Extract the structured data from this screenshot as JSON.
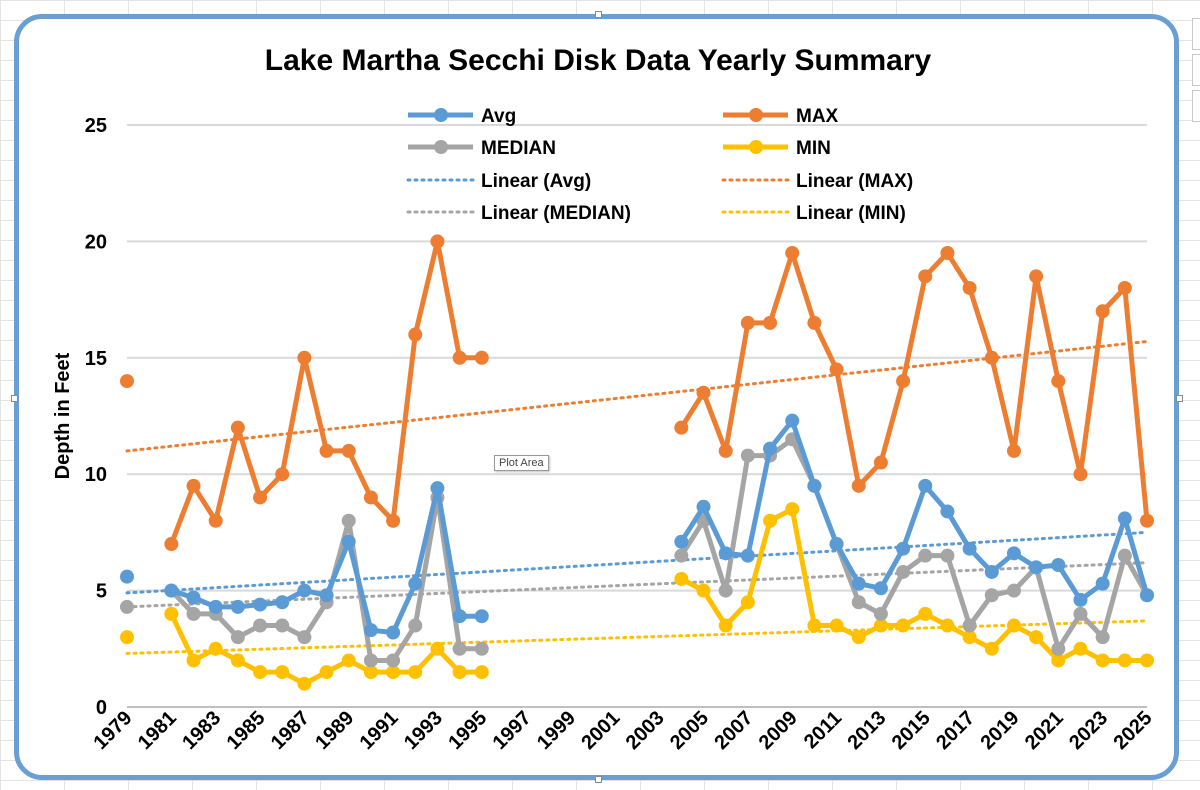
{
  "chart_data": {
    "type": "line",
    "title": "Lake Martha Secchi Disk Data Yearly Summary",
    "xlabel": "",
    "ylabel": "Depth in Feet",
    "ylim": [
      0,
      25
    ],
    "yticks": [
      0,
      5,
      10,
      15,
      20,
      25
    ],
    "x": [
      1979,
      1980,
      1981,
      1982,
      1983,
      1984,
      1985,
      1986,
      1987,
      1988,
      1989,
      1990,
      1991,
      1992,
      1993,
      1994,
      1995,
      1996,
      1997,
      1998,
      1999,
      2000,
      2001,
      2002,
      2003,
      2004,
      2005,
      2006,
      2007,
      2008,
      2009,
      2010,
      2011,
      2012,
      2013,
      2014,
      2015,
      2016,
      2017,
      2018,
      2019,
      2020,
      2021,
      2022,
      2023,
      2024,
      2025
    ],
    "xtick_labels": [
      "1979",
      "1981",
      "1983",
      "1985",
      "1987",
      "1989",
      "1991",
      "1993",
      "1995",
      "1997",
      "1999",
      "2001",
      "2003",
      "2005",
      "2007",
      "2009",
      "2011",
      "2013",
      "2015",
      "2017",
      "2019",
      "2021",
      "2023",
      "2025"
    ],
    "grid": "horizontal",
    "series": [
      {
        "name": "Avg",
        "color": "#5b9bd5",
        "values": [
          5.6,
          null,
          5.0,
          4.7,
          4.3,
          4.3,
          4.4,
          4.5,
          5.0,
          4.8,
          7.1,
          3.3,
          3.2,
          5.3,
          9.4,
          3.9,
          3.9,
          null,
          null,
          null,
          null,
          null,
          null,
          null,
          null,
          7.1,
          8.6,
          6.6,
          6.5,
          11.1,
          12.3,
          9.5,
          7.0,
          5.3,
          5.1,
          6.8,
          9.5,
          8.4,
          6.8,
          5.8,
          6.6,
          6.0,
          6.1,
          4.6,
          5.3,
          8.1,
          4.8
        ]
      },
      {
        "name": "MAX",
        "color": "#ed7d31",
        "values": [
          14,
          null,
          7,
          9.5,
          8,
          12,
          9,
          10,
          15,
          11,
          11,
          9,
          8,
          16,
          20,
          15,
          15,
          null,
          null,
          null,
          null,
          null,
          null,
          null,
          null,
          12,
          13.5,
          11,
          16.5,
          16.5,
          19.5,
          16.5,
          14.5,
          9.5,
          10.5,
          14,
          18.5,
          19.5,
          18,
          15,
          11,
          18.5,
          14,
          10,
          17,
          18,
          8
        ]
      },
      {
        "name": "MEDIAN",
        "color": "#a5a5a5",
        "values": [
          4.3,
          null,
          5.0,
          4.0,
          4.0,
          3.0,
          3.5,
          3.5,
          3.0,
          4.5,
          8.0,
          2.0,
          2.0,
          3.5,
          9.0,
          2.5,
          2.5,
          null,
          null,
          null,
          null,
          null,
          null,
          null,
          null,
          6.5,
          8.0,
          5.0,
          10.8,
          10.8,
          11.5,
          9.5,
          7.0,
          4.5,
          4.0,
          5.8,
          6.5,
          6.5,
          3.5,
          4.8,
          5.0,
          6.0,
          2.5,
          4.0,
          3.0,
          6.5,
          4.8
        ]
      },
      {
        "name": "MIN",
        "color": "#ffc000",
        "values": [
          3.0,
          null,
          4.0,
          2.0,
          2.5,
          2.0,
          1.5,
          1.5,
          1.0,
          1.5,
          2.0,
          1.5,
          1.5,
          1.5,
          2.5,
          1.5,
          1.5,
          null,
          null,
          null,
          null,
          null,
          null,
          null,
          null,
          5.5,
          5.0,
          3.5,
          4.5,
          8.0,
          8.5,
          3.5,
          3.5,
          3.0,
          3.5,
          3.5,
          4.0,
          3.5,
          3.0,
          2.5,
          3.5,
          3.0,
          2.0,
          2.5,
          2.0,
          2.0,
          2.0
        ]
      }
    ],
    "trendlines": [
      {
        "name": "Linear (Avg)",
        "color": "#5b9bd5",
        "from": [
          1979,
          4.9
        ],
        "to": [
          2025,
          7.5
        ]
      },
      {
        "name": "Linear (MAX)",
        "color": "#ed7d31",
        "from": [
          1979,
          11.0
        ],
        "to": [
          2025,
          15.7
        ]
      },
      {
        "name": "Linear (MEDIAN)",
        "color": "#a5a5a5",
        "from": [
          1979,
          4.3
        ],
        "to": [
          2025,
          6.2
        ]
      },
      {
        "name": "Linear (MIN)",
        "color": "#ffc000",
        "from": [
          1979,
          2.3
        ],
        "to": [
          2025,
          3.7
        ]
      }
    ],
    "legend": {
      "placement": "top-center",
      "entries": [
        {
          "label": "Avg",
          "color": "#5b9bd5",
          "style": "marker-line"
        },
        {
          "label": "MAX",
          "color": "#ed7d31",
          "style": "marker-line"
        },
        {
          "label": "MEDIAN",
          "color": "#a5a5a5",
          "style": "marker-line"
        },
        {
          "label": "MIN",
          "color": "#ffc000",
          "style": "marker-line"
        },
        {
          "label": "Linear (Avg)",
          "color": "#5b9bd5",
          "style": "dotted"
        },
        {
          "label": "Linear (MAX)",
          "color": "#ed7d31",
          "style": "dotted"
        },
        {
          "label": "Linear (MEDIAN)",
          "color": "#a5a5a5",
          "style": "dotted"
        },
        {
          "label": "Linear (MIN)",
          "color": "#ffc000",
          "style": "dotted"
        }
      ]
    }
  },
  "tooltip": {
    "text": "Plot Area"
  },
  "colors": {
    "frame": "#6a9fd3",
    "grid": "#d9d9d9",
    "axis": "#bfbfbf"
  }
}
